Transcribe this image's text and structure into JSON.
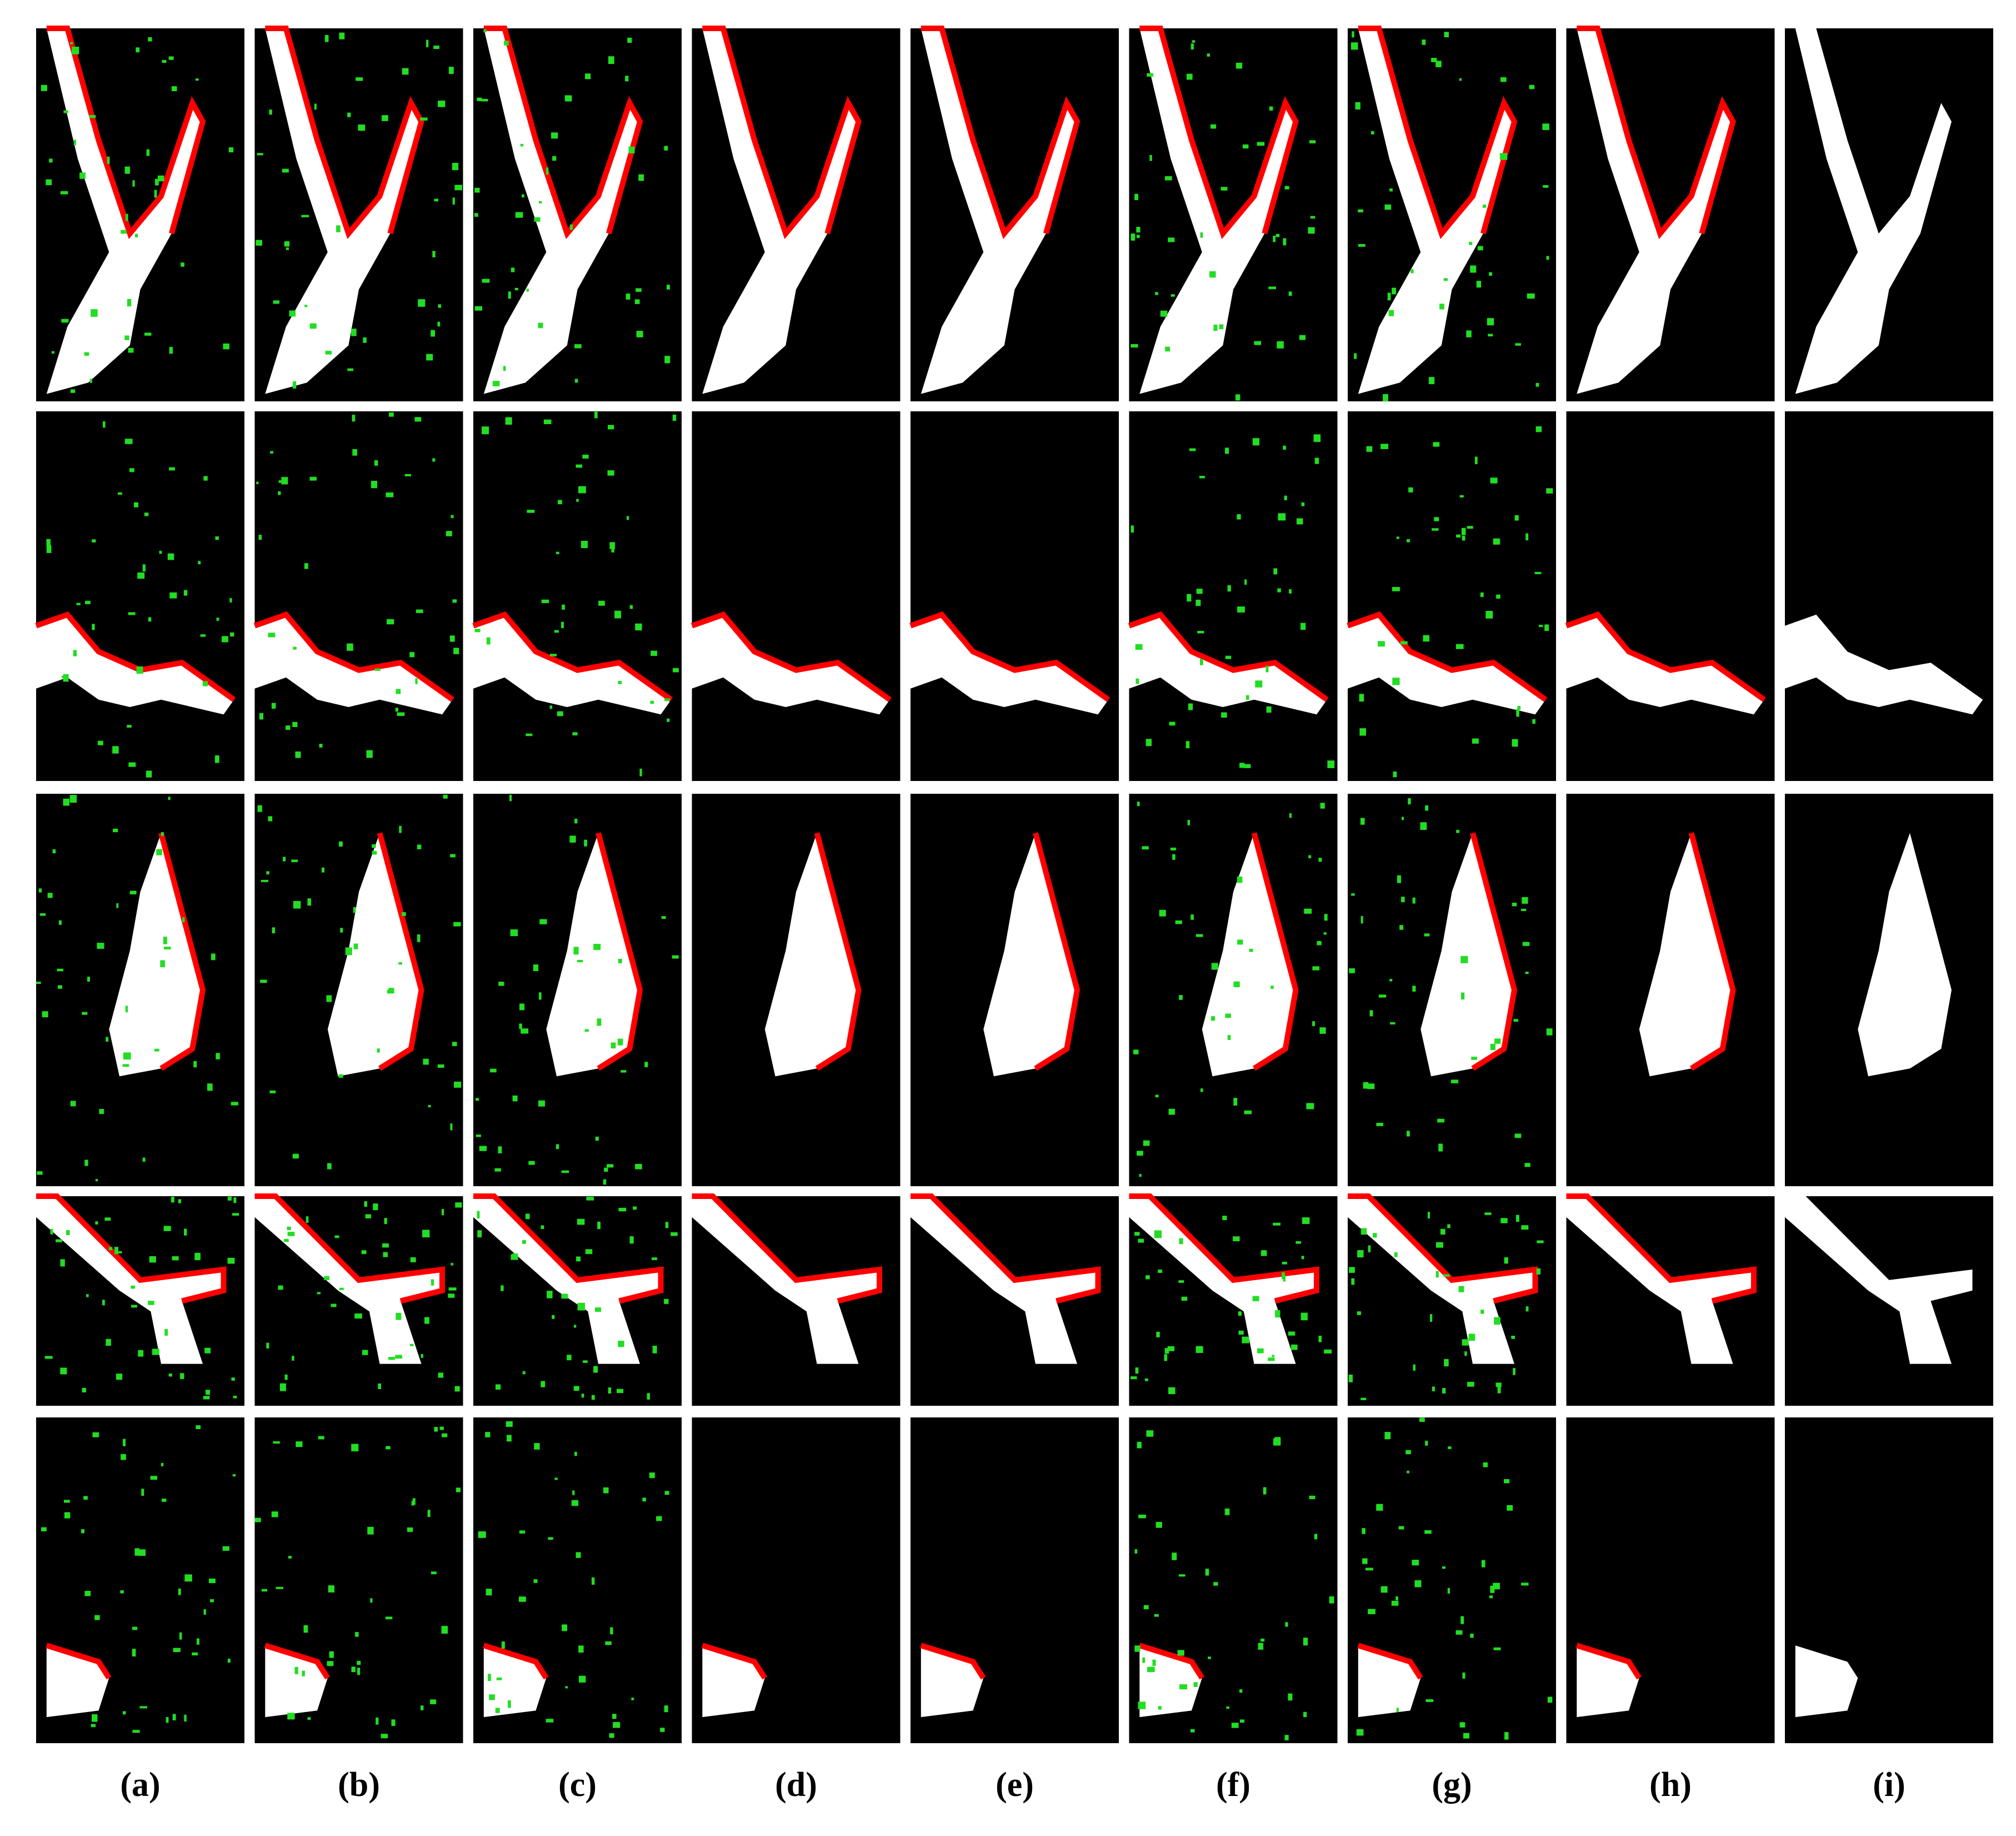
{
  "labels": [
    "(a)",
    "(b)",
    "(c)",
    "(d)",
    "(e)",
    "(f)",
    "(g)",
    "(h)",
    "(i)"
  ]
}
